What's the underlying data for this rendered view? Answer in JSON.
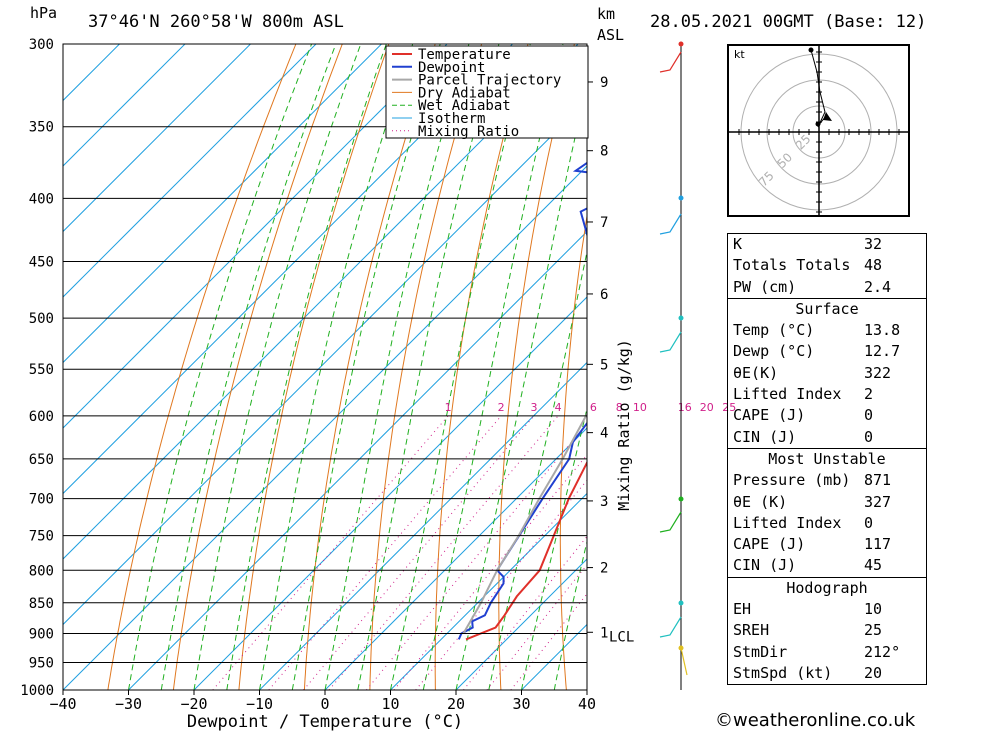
{
  "header": {
    "pressure_unit": "hPa",
    "location": "37°46'N  260°58'W  800m  ASL",
    "km_label": "km",
    "asl_label": "ASL",
    "datetime": "28.05.2021  00GMT  (Base: 12)"
  },
  "colors": {
    "temperature": "#e0302a",
    "dewpoint": "#2040d0",
    "parcel": "#a8a8a8",
    "dry_adiabat": "#e07820",
    "wet_adiabat": "#20b020",
    "isotherm": "#20a0e0",
    "mixing_ratio": "#d0208a"
  },
  "chart_data": {
    "type": "line",
    "title": "",
    "xlabel": "Dewpoint / Temperature (°C)",
    "ylabel": "hPa",
    "right_axis_label": "Mixing Ratio (g/kg)",
    "xlim": [
      -40,
      40
    ],
    "ylim": [
      1000,
      300
    ],
    "y_log_scale": true,
    "x_ticks": [
      -40,
      -30,
      -20,
      -10,
      0,
      10,
      20,
      30,
      40
    ],
    "pressure_levels": [
      300,
      350,
      400,
      450,
      500,
      550,
      600,
      650,
      700,
      750,
      800,
      850,
      900,
      950,
      1000
    ],
    "km_levels": [
      {
        "label": "9",
        "p": 322
      },
      {
        "label": "8",
        "p": 366
      },
      {
        "label": "7",
        "p": 418
      },
      {
        "label": "6",
        "p": 478
      },
      {
        "label": "5",
        "p": 545
      },
      {
        "label": "4",
        "p": 619
      },
      {
        "label": "3",
        "p": 703
      },
      {
        "label": "2",
        "p": 796
      },
      {
        "label": "1",
        "p": 898
      }
    ],
    "lcl_label": "LCL",
    "lcl_p": 900,
    "mixing_ratio_labels": [
      "1",
      "2",
      "3",
      "4",
      "6",
      "8",
      "10",
      "16",
      "20",
      "25"
    ],
    "legend": [
      "Temperature",
      "Dewpoint",
      "Parcel Trajectory",
      "Dry Adiabat",
      "Wet Adiabat",
      "Isotherm",
      "Mixing Ratio"
    ],
    "series": [
      {
        "name": "Temperature",
        "points": [
          [
            910,
            13.8
          ],
          [
            890,
            16.5
          ],
          [
            870,
            16
          ],
          [
            840,
            15
          ],
          [
            800,
            14.5
          ],
          [
            760,
            12
          ],
          [
            700,
            8
          ],
          [
            650,
            5
          ],
          [
            600,
            3
          ],
          [
            560,
            0
          ],
          [
            500,
            -4.5
          ],
          [
            450,
            -9
          ],
          [
            400,
            -16
          ],
          [
            370,
            -22
          ],
          [
            350,
            -28
          ],
          [
            330,
            -34
          ],
          [
            300,
            -42
          ]
        ]
      },
      {
        "name": "Dewpoint",
        "points": [
          [
            910,
            12.7
          ],
          [
            900,
            12.2
          ],
          [
            890,
            13
          ],
          [
            880,
            12
          ],
          [
            870,
            13
          ],
          [
            850,
            12
          ],
          [
            820,
            11
          ],
          [
            810,
            10
          ],
          [
            800,
            8
          ],
          [
            700,
            4
          ],
          [
            650,
            2
          ],
          [
            630,
            0
          ],
          [
            600,
            -1
          ],
          [
            580,
            -3
          ],
          [
            570,
            -2
          ],
          [
            560,
            -3
          ],
          [
            550,
            -3
          ],
          [
            530,
            -9
          ],
          [
            500,
            -9
          ],
          [
            460,
            -12
          ],
          [
            450,
            -15
          ],
          [
            440,
            -22
          ],
          [
            430,
            -29
          ],
          [
            410,
            -34
          ],
          [
            400,
            -32
          ],
          [
            390,
            -22
          ],
          [
            380,
            -41
          ],
          [
            360,
            -39
          ],
          [
            340,
            -58
          ],
          [
            330,
            -62
          ],
          [
            320,
            -54
          ],
          [
            310,
            -48
          ],
          [
            300,
            -48
          ]
        ]
      },
      {
        "name": "Parcel Trajectory",
        "points": [
          [
            900,
            12.5
          ],
          [
            850,
            10.5
          ],
          [
            800,
            8
          ],
          [
            750,
            6
          ],
          [
            700,
            3.5
          ],
          [
            650,
            1
          ],
          [
            600,
            -2
          ],
          [
            550,
            -5.5
          ],
          [
            500,
            -10
          ],
          [
            450,
            -15.5
          ],
          [
            400,
            -22
          ],
          [
            350,
            -30
          ],
          [
            310,
            -37
          ]
        ]
      }
    ]
  },
  "hodograph": {
    "unit": "kt",
    "ring_labels": [
      "25",
      "50",
      "75"
    ]
  },
  "indices": {
    "rows": [
      {
        "k": "K",
        "v": "32"
      },
      {
        "k": "Totals Totals",
        "v": "48"
      },
      {
        "k": "PW (cm)",
        "v": "2.4"
      }
    ]
  },
  "surface": {
    "title": "Surface",
    "rows": [
      {
        "k": "Temp (°C)",
        "v": "13.8"
      },
      {
        "k": "Dewp (°C)",
        "v": "12.7"
      },
      {
        "k": "θE(K)",
        "v": "322"
      },
      {
        "k": "Lifted Index",
        "v": "2"
      },
      {
        "k": "CAPE (J)",
        "v": "0"
      },
      {
        "k": "CIN (J)",
        "v": "0"
      }
    ]
  },
  "most_unstable": {
    "title": "Most Unstable",
    "rows": [
      {
        "k": "Pressure (mb)",
        "v": "871"
      },
      {
        "k": "θE (K)",
        "v": "327"
      },
      {
        "k": "Lifted Index",
        "v": "0"
      },
      {
        "k": "CAPE (J)",
        "v": "117"
      },
      {
        "k": "CIN (J)",
        "v": "45"
      }
    ]
  },
  "hodograph_params": {
    "title": "Hodograph",
    "rows": [
      {
        "k": "EH",
        "v": "10"
      },
      {
        "k": "SREH",
        "v": "25"
      },
      {
        "k": "StmDir",
        "v": "212°"
      },
      {
        "k": "StmSpd (kt)",
        "v": "20"
      }
    ]
  },
  "footer": {
    "site": "©weatheronline.co.uk"
  }
}
